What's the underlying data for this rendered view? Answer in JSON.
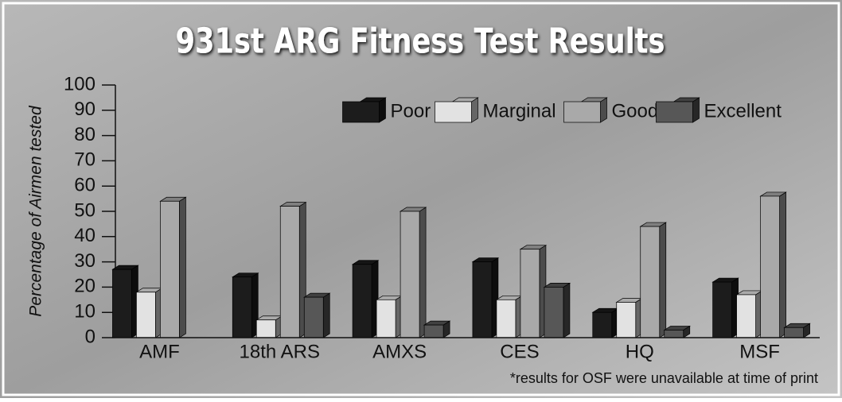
{
  "chart_data": {
    "type": "bar",
    "title": "931st ARG Fitness Test Results",
    "y_label": "Percentage of Airmen tested",
    "footnote": "*results for OSF were unavailable at time of print",
    "categories": [
      "AMF",
      "18th ARS",
      "AMXS",
      "CES",
      "HQ",
      "MSF"
    ],
    "series": [
      {
        "name": "Poor",
        "color": "#1c1c1c",
        "values": [
          27,
          24,
          29,
          30,
          10,
          22
        ]
      },
      {
        "name": "Marginal",
        "color": "#e2e2e2",
        "values": [
          18,
          7,
          15,
          15,
          14,
          17
        ]
      },
      {
        "name": "Good",
        "color": "#a9a9a9",
        "values": [
          54,
          52,
          50,
          35,
          44,
          56
        ]
      },
      {
        "name": "Excellent",
        "color": "#575757",
        "values": [
          null,
          16,
          5,
          20,
          3,
          4
        ]
      }
    ],
    "ylim": [
      0,
      100
    ],
    "yticks": [
      0,
      10,
      20,
      30,
      40,
      50,
      60,
      70,
      80,
      90,
      100
    ],
    "legend": "top-right"
  }
}
